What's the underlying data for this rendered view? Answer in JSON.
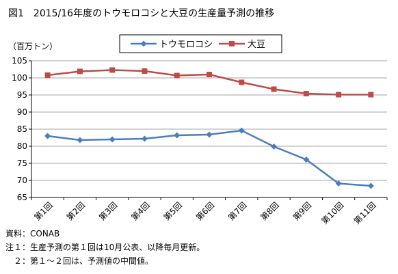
{
  "chart_data": {
    "type": "line",
    "title": "図1　2015/16年度のトウモロコシと大豆の生産量予測の推移",
    "ylabel": "（百万トン）",
    "xlabel": "",
    "ylim": [
      65,
      105
    ],
    "yticks": [
      65,
      70,
      75,
      80,
      85,
      90,
      95,
      100,
      105
    ],
    "grid": true,
    "legend_position": "top-center",
    "categories": [
      "第1回",
      "第2回",
      "第3回",
      "第4回",
      "第5回",
      "第6回",
      "第7回",
      "第8回",
      "第9回",
      "第10回",
      "第11回"
    ],
    "series": [
      {
        "name": "トウモロコシ",
        "color": "#4a7ebb",
        "marker": "diamond",
        "values": [
          83.0,
          81.8,
          82.0,
          82.2,
          83.2,
          83.4,
          84.6,
          79.9,
          76.1,
          69.1,
          68.4
        ]
      },
      {
        "name": "大豆",
        "color": "#be4b48",
        "marker": "square",
        "values": [
          100.8,
          101.9,
          102.3,
          102.0,
          100.7,
          101.0,
          98.7,
          96.7,
          95.4,
          95.1,
          95.1
        ]
      }
    ],
    "notes": [
      "資料：CONAB",
      "注１：生産予測の第１回は10月公表、以降毎月更新。",
      "　２：第１～２回は、予測値の中間値。"
    ]
  }
}
